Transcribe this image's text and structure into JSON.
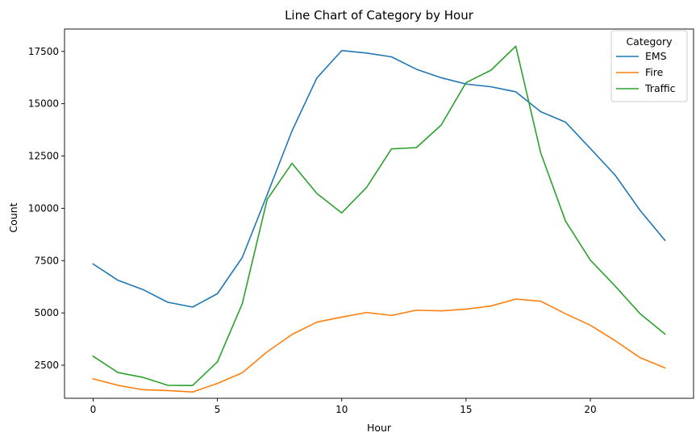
{
  "chart_data": {
    "type": "line",
    "title": "Line Chart of Category by Hour",
    "xlabel": "Hour",
    "ylabel": "Count",
    "xlim": [
      -1.15,
      24.15
    ],
    "ylim": [
      920,
      18570
    ],
    "xticks": [
      0,
      5,
      10,
      15,
      20
    ],
    "yticks": [
      2500,
      5000,
      7500,
      10000,
      12500,
      15000,
      17500
    ],
    "grid": false,
    "legend": {
      "title": "Category",
      "placement": "top-right"
    },
    "x": [
      0,
      1,
      2,
      3,
      4,
      5,
      6,
      7,
      8,
      9,
      10,
      11,
      12,
      13,
      14,
      15,
      16,
      17,
      18,
      19,
      20,
      21,
      22,
      23
    ],
    "series": [
      {
        "name": "EMS",
        "color": "#1f77b4",
        "values": [
          7340,
          6560,
          6120,
          5510,
          5280,
          5920,
          7650,
          10650,
          13700,
          16230,
          17540,
          17420,
          17240,
          16650,
          16240,
          15940,
          15810,
          15570,
          14620,
          14120,
          12860,
          11580,
          9900,
          8470
        ]
      },
      {
        "name": "Fire",
        "color": "#ff7f0e",
        "values": [
          1850,
          1540,
          1330,
          1290,
          1220,
          1630,
          2140,
          3140,
          3970,
          4560,
          4800,
          5020,
          4880,
          5130,
          5100,
          5180,
          5330,
          5660,
          5560,
          4960,
          4410,
          3670,
          2860,
          2370
        ]
      },
      {
        "name": "Traffic",
        "color": "#2ca02c",
        "values": [
          2930,
          2150,
          1920,
          1540,
          1530,
          2660,
          5440,
          10420,
          12150,
          10710,
          9780,
          11000,
          12840,
          12900,
          13980,
          16010,
          16600,
          17750,
          12660,
          9390,
          7520,
          6280,
          4960,
          3990
        ]
      }
    ]
  }
}
